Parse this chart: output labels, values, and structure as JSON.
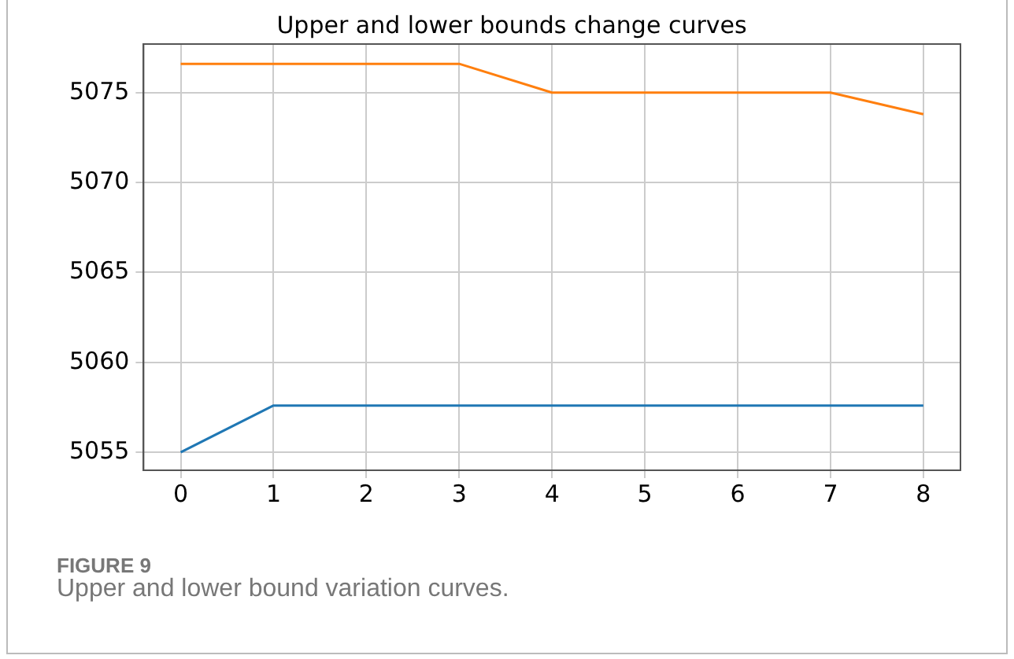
{
  "chart_data": {
    "type": "line",
    "title": "Upper and lower bounds change curves",
    "x": [
      0,
      1,
      2,
      3,
      4,
      5,
      6,
      7,
      8
    ],
    "series": [
      {
        "color": "#1f77b4",
        "values": [
          5055,
          5057.6,
          5057.6,
          5057.6,
          5057.6,
          5057.6,
          5057.6,
          5057.6,
          5057.6
        ]
      },
      {
        "color": "#ff7f0e",
        "values": [
          5076.6,
          5076.6,
          5076.6,
          5076.6,
          5075,
          5075,
          5075,
          5075,
          5073.8
        ]
      }
    ],
    "xlim": [
      -0.4,
      8.4
    ],
    "xticks": [
      0,
      1,
      2,
      3,
      4,
      5,
      6,
      7,
      8
    ],
    "ylim": [
      5054,
      5077.7
    ],
    "yticks": [
      5055,
      5060,
      5065,
      5070,
      5075
    ],
    "grid": true,
    "legend": false,
    "marker": "none",
    "line_style": "solid",
    "annotations": [
      "FIGURE 9",
      "Upper and lower bound variation curves."
    ]
  }
}
